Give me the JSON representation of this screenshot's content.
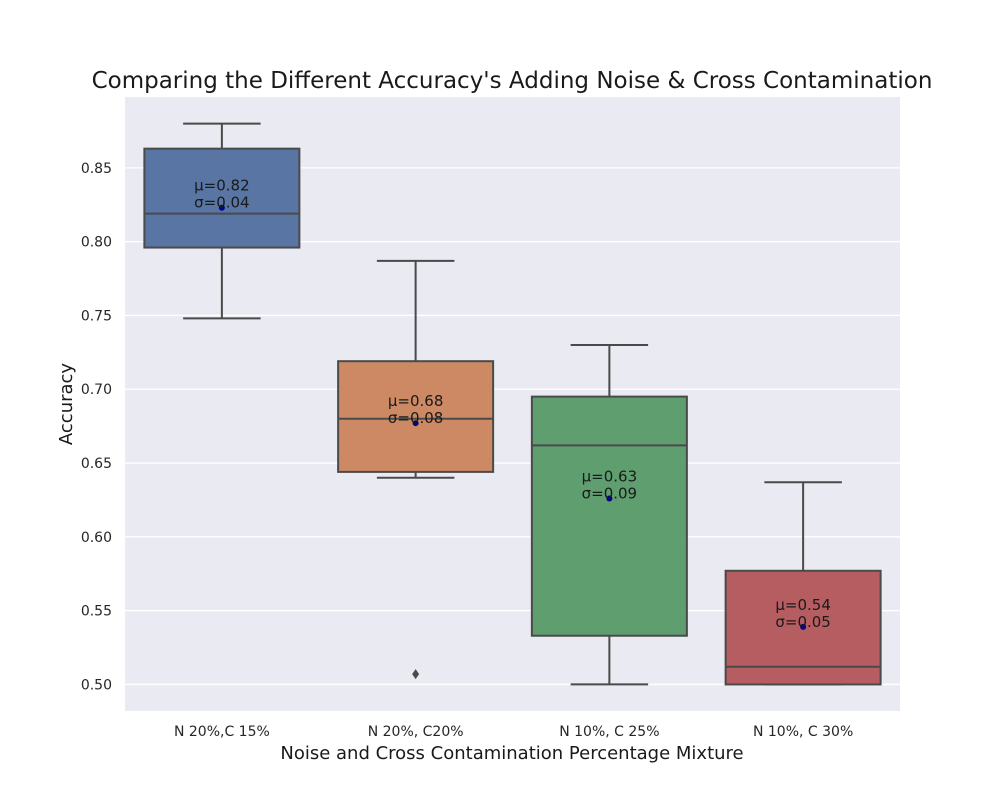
{
  "chart_data": {
    "type": "box",
    "title": "Comparing the Different Accuracy's Adding Noise & Cross Contamination",
    "xlabel": "Noise and Cross Contamination Percentage Mixture",
    "ylabel": "Accuracy",
    "ylim": [
      0.482,
      0.898
    ],
    "yticks": [
      "0.50",
      "0.55",
      "0.60",
      "0.65",
      "0.70",
      "0.75",
      "0.80",
      "0.85"
    ],
    "grid": true,
    "categories": [
      "N 20%,C 15%",
      "N 20%, C20%",
      "N 10%, C 25%",
      "N 10%, C 30%"
    ],
    "boxes": [
      {
        "whisker_low": 0.748,
        "q1": 0.796,
        "median": 0.819,
        "q3": 0.863,
        "whisker_high": 0.88,
        "mean": 0.823,
        "outliers": [],
        "color": "#5875a4",
        "mean_label": "μ=0.82",
        "std_label": "σ=0.04"
      },
      {
        "whisker_low": 0.64,
        "q1": 0.644,
        "median": 0.68,
        "q3": 0.719,
        "whisker_high": 0.787,
        "mean": 0.677,
        "outliers": [
          0.507
        ],
        "color": "#cc8963",
        "mean_label": "μ=0.68",
        "std_label": "σ=0.08"
      },
      {
        "whisker_low": 0.5,
        "q1": 0.533,
        "median": 0.662,
        "q3": 0.695,
        "whisker_high": 0.73,
        "mean": 0.626,
        "outliers": [],
        "color": "#5f9e6e",
        "mean_label": "μ=0.63",
        "std_label": "σ=0.09"
      },
      {
        "whisker_low": 0.5,
        "q1": 0.5,
        "median": 0.512,
        "q3": 0.577,
        "whisker_high": 0.637,
        "mean": 0.539,
        "outliers": [],
        "color": "#b55d60",
        "mean_label": "μ=0.54",
        "std_label": "σ=0.05"
      }
    ]
  }
}
